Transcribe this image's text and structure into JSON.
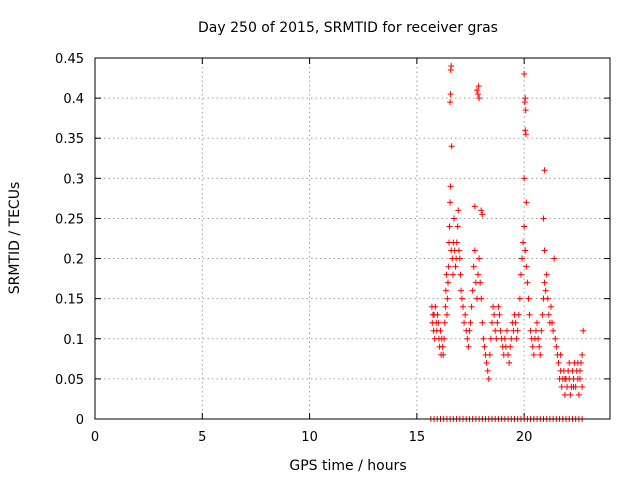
{
  "chart_data": {
    "type": "scatter",
    "title": "Day 250 of 2015, SRMTID for receiver gras",
    "xlabel": "GPS time / hours",
    "ylabel": "SRMTID / TECUs",
    "xlim": [
      0,
      24
    ],
    "ylim": [
      0,
      0.45
    ],
    "xticks": [
      0,
      5,
      10,
      15,
      20
    ],
    "yticks": [
      0,
      0.05,
      0.1,
      0.15,
      0.2,
      0.25,
      0.3,
      0.35,
      0.4,
      0.45
    ],
    "ytick_labels": [
      "0",
      "0.05",
      "0.1",
      "0.15",
      "0.2",
      "0.25",
      "0.3",
      "0.35",
      "0.4",
      "0.45"
    ],
    "grid": true,
    "series": [
      {
        "name": "SRMTID",
        "color": "#ff0000",
        "marker": "plus",
        "points": [
          [
            15.65,
            0.0
          ],
          [
            15.8,
            0.0
          ],
          [
            15.95,
            0.0
          ],
          [
            16.1,
            0.0
          ],
          [
            16.25,
            0.0
          ],
          [
            16.4,
            0.0
          ],
          [
            16.55,
            0.0
          ],
          [
            16.7,
            0.0
          ],
          [
            16.85,
            0.0
          ],
          [
            17.0,
            0.0
          ],
          [
            17.15,
            0.0
          ],
          [
            17.3,
            0.0
          ],
          [
            17.45,
            0.0
          ],
          [
            17.6,
            0.0
          ],
          [
            17.75,
            0.0
          ],
          [
            17.9,
            0.0
          ],
          [
            18.05,
            0.0
          ],
          [
            18.2,
            0.0
          ],
          [
            18.35,
            0.0
          ],
          [
            18.5,
            0.0
          ],
          [
            18.65,
            0.0
          ],
          [
            18.8,
            0.0
          ],
          [
            18.95,
            0.0
          ],
          [
            19.1,
            0.0
          ],
          [
            19.25,
            0.0
          ],
          [
            19.4,
            0.0
          ],
          [
            19.55,
            0.0
          ],
          [
            19.7,
            0.0
          ],
          [
            19.85,
            0.0
          ],
          [
            20.0,
            0.0
          ],
          [
            20.15,
            0.0
          ],
          [
            20.3,
            0.0
          ],
          [
            20.45,
            0.0
          ],
          [
            20.6,
            0.0
          ],
          [
            20.75,
            0.0
          ],
          [
            20.9,
            0.0
          ],
          [
            21.05,
            0.0
          ],
          [
            21.2,
            0.0
          ],
          [
            21.35,
            0.0
          ],
          [
            21.5,
            0.0
          ],
          [
            21.65,
            0.0
          ],
          [
            21.8,
            0.0
          ],
          [
            21.95,
            0.0
          ],
          [
            22.1,
            0.0
          ],
          [
            22.25,
            0.0
          ],
          [
            22.4,
            0.0
          ],
          [
            22.55,
            0.0
          ],
          [
            22.7,
            0.0
          ],
          [
            15.7,
            0.14
          ],
          [
            15.72,
            0.12
          ],
          [
            15.75,
            0.13
          ],
          [
            15.78,
            0.11
          ],
          [
            15.8,
            0.13
          ],
          [
            15.83,
            0.1
          ],
          [
            15.86,
            0.14
          ],
          [
            15.9,
            0.12
          ],
          [
            15.93,
            0.11
          ],
          [
            15.96,
            0.13
          ],
          [
            16.0,
            0.12
          ],
          [
            16.03,
            0.1
          ],
          [
            16.06,
            0.09
          ],
          [
            16.1,
            0.11
          ],
          [
            16.13,
            0.08
          ],
          [
            16.16,
            0.1
          ],
          [
            16.2,
            0.09
          ],
          [
            16.23,
            0.08
          ],
          [
            16.27,
            0.1
          ],
          [
            16.3,
            0.12
          ],
          [
            16.33,
            0.14
          ],
          [
            16.35,
            0.16
          ],
          [
            16.38,
            0.18
          ],
          [
            16.4,
            0.13
          ],
          [
            16.42,
            0.15
          ],
          [
            16.45,
            0.17
          ],
          [
            16.48,
            0.19
          ],
          [
            16.5,
            0.22
          ],
          [
            16.52,
            0.24
          ],
          [
            16.55,
            0.27
          ],
          [
            16.57,
            0.29
          ],
          [
            16.6,
            0.21
          ],
          [
            16.62,
            0.34
          ],
          [
            16.65,
            0.2
          ],
          [
            16.68,
            0.18
          ],
          [
            16.7,
            0.22
          ],
          [
            16.73,
            0.25
          ],
          [
            16.76,
            0.21
          ],
          [
            16.8,
            0.19
          ],
          [
            16.83,
            0.2
          ],
          [
            16.86,
            0.22
          ],
          [
            16.9,
            0.24
          ],
          [
            16.93,
            0.26
          ],
          [
            16.96,
            0.21
          ],
          [
            17.0,
            0.2
          ],
          [
            17.03,
            0.18
          ],
          [
            17.06,
            0.16
          ],
          [
            17.1,
            0.15
          ],
          [
            16.55,
            0.395
          ],
          [
            16.57,
            0.405
          ],
          [
            16.58,
            0.435
          ],
          [
            16.6,
            0.44
          ],
          [
            17.15,
            0.14
          ],
          [
            17.2,
            0.12
          ],
          [
            17.25,
            0.13
          ],
          [
            17.3,
            0.11
          ],
          [
            17.35,
            0.1
          ],
          [
            17.4,
            0.09
          ],
          [
            17.45,
            0.11
          ],
          [
            17.5,
            0.12
          ],
          [
            17.55,
            0.14
          ],
          [
            17.6,
            0.16
          ],
          [
            17.65,
            0.19
          ],
          [
            17.7,
            0.21
          ],
          [
            17.75,
            0.17
          ],
          [
            17.8,
            0.15
          ],
          [
            17.85,
            0.18
          ],
          [
            17.9,
            0.2
          ],
          [
            17.95,
            0.17
          ],
          [
            18.0,
            0.15
          ],
          [
            18.05,
            0.12
          ],
          [
            18.1,
            0.1
          ],
          [
            18.15,
            0.09
          ],
          [
            18.2,
            0.08
          ],
          [
            18.25,
            0.07
          ],
          [
            18.3,
            0.06
          ],
          [
            18.35,
            0.05
          ],
          [
            18.4,
            0.08
          ],
          [
            18.45,
            0.1
          ],
          [
            18.5,
            0.12
          ],
          [
            18.55,
            0.14
          ],
          [
            18.6,
            0.13
          ],
          [
            18.65,
            0.11
          ],
          [
            18.7,
            0.1
          ],
          [
            17.8,
            0.41
          ],
          [
            17.85,
            0.405
          ],
          [
            17.88,
            0.415
          ],
          [
            17.9,
            0.4
          ],
          [
            18.0,
            0.26
          ],
          [
            18.05,
            0.255
          ],
          [
            17.7,
            0.265
          ],
          [
            18.75,
            0.12
          ],
          [
            18.8,
            0.14
          ],
          [
            18.85,
            0.13
          ],
          [
            18.9,
            0.11
          ],
          [
            18.95,
            0.1
          ],
          [
            19.0,
            0.09
          ],
          [
            19.05,
            0.08
          ],
          [
            19.1,
            0.1
          ],
          [
            19.15,
            0.09
          ],
          [
            19.2,
            0.11
          ],
          [
            19.25,
            0.08
          ],
          [
            19.3,
            0.07
          ],
          [
            19.35,
            0.09
          ],
          [
            19.4,
            0.1
          ],
          [
            19.45,
            0.12
          ],
          [
            19.5,
            0.11
          ],
          [
            19.55,
            0.13
          ],
          [
            19.6,
            0.12
          ],
          [
            19.65,
            0.1
          ],
          [
            19.7,
            0.11
          ],
          [
            19.75,
            0.13
          ],
          [
            19.8,
            0.15
          ],
          [
            19.85,
            0.18
          ],
          [
            19.9,
            0.2
          ],
          [
            19.95,
            0.22
          ],
          [
            20.0,
            0.24
          ],
          [
            20.05,
            0.21
          ],
          [
            20.1,
            0.19
          ],
          [
            20.15,
            0.17
          ],
          [
            20.2,
            0.15
          ],
          [
            20.25,
            0.13
          ],
          [
            20.3,
            0.11
          ],
          [
            20.0,
            0.43
          ],
          [
            20.03,
            0.395
          ],
          [
            20.05,
            0.4
          ],
          [
            20.07,
            0.385
          ],
          [
            20.05,
            0.36
          ],
          [
            20.08,
            0.355
          ],
          [
            20.0,
            0.3
          ],
          [
            20.1,
            0.27
          ],
          [
            20.35,
            0.1
          ],
          [
            20.4,
            0.09
          ],
          [
            20.45,
            0.08
          ],
          [
            20.5,
            0.1
          ],
          [
            20.55,
            0.11
          ],
          [
            20.6,
            0.12
          ],
          [
            20.65,
            0.1
          ],
          [
            20.7,
            0.09
          ],
          [
            20.75,
            0.08
          ],
          [
            20.8,
            0.11
          ],
          [
            20.85,
            0.13
          ],
          [
            20.9,
            0.15
          ],
          [
            20.95,
            0.17
          ],
          [
            21.0,
            0.16
          ],
          [
            21.05,
            0.18
          ],
          [
            21.1,
            0.15
          ],
          [
            21.15,
            0.13
          ],
          [
            21.2,
            0.12
          ],
          [
            21.25,
            0.14
          ],
          [
            21.3,
            0.12
          ],
          [
            21.35,
            0.11
          ],
          [
            21.4,
            0.2
          ],
          [
            21.45,
            0.1
          ],
          [
            21.5,
            0.09
          ],
          [
            20.95,
            0.31
          ],
          [
            20.9,
            0.25
          ],
          [
            20.95,
            0.21
          ],
          [
            21.55,
            0.08
          ],
          [
            21.6,
            0.07
          ],
          [
            21.65,
            0.05
          ],
          [
            21.7,
            0.06
          ],
          [
            21.75,
            0.04
          ],
          [
            21.8,
            0.05
          ],
          [
            21.85,
            0.06
          ],
          [
            21.9,
            0.03
          ],
          [
            21.95,
            0.05
          ],
          [
            22.0,
            0.04
          ],
          [
            22.05,
            0.06
          ],
          [
            22.1,
            0.05
          ],
          [
            22.15,
            0.03
          ],
          [
            22.2,
            0.04
          ],
          [
            22.25,
            0.06
          ],
          [
            22.3,
            0.05
          ],
          [
            22.35,
            0.07
          ],
          [
            22.4,
            0.04
          ],
          [
            22.45,
            0.06
          ],
          [
            22.5,
            0.05
          ],
          [
            22.55,
            0.03
          ],
          [
            22.6,
            0.06
          ],
          [
            22.65,
            0.07
          ],
          [
            22.7,
            0.08
          ],
          [
            22.75,
            0.11
          ],
          [
            22.7,
            0.04
          ],
          [
            22.6,
            0.05
          ],
          [
            22.5,
            0.07
          ],
          [
            22.3,
            0.04
          ],
          [
            22.1,
            0.07
          ],
          [
            21.9,
            0.05
          ],
          [
            21.7,
            0.08
          ]
        ]
      }
    ]
  }
}
